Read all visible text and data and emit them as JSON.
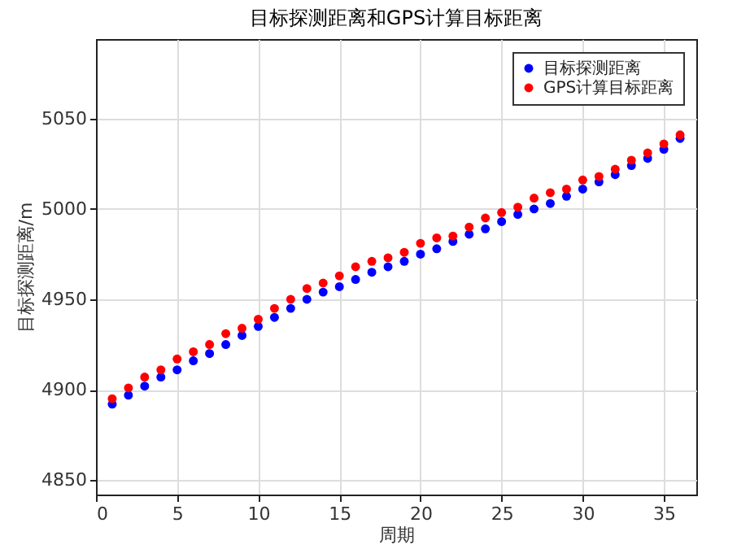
{
  "chart_data": {
    "type": "scatter",
    "title": "目标探测距离和GPS计算目标距离",
    "xlabel": "周期",
    "ylabel": "目标探测距离/m",
    "x": [
      1,
      2,
      3,
      4,
      5,
      6,
      7,
      8,
      9,
      10,
      11,
      12,
      13,
      14,
      15,
      16,
      17,
      18,
      19,
      20,
      21,
      22,
      23,
      24,
      25,
      26,
      27,
      28,
      29,
      30,
      31,
      32,
      33,
      34,
      35,
      36
    ],
    "series": [
      {
        "name": "目标探测距离",
        "color": "#0000ff",
        "values": [
          4892,
          4897,
          4902,
          4907,
          4911,
          4916,
          4920,
          4925,
          4930,
          4935,
          4940,
          4945,
          4950,
          4954,
          4957,
          4961,
          4965,
          4968,
          4971,
          4975,
          4978,
          4982,
          4986,
          4989,
          4993,
          4997,
          5000,
          5003,
          5007,
          5011,
          5015,
          5019,
          5024,
          5028,
          5033,
          5039
        ]
      },
      {
        "name": "GPS计算目标距离",
        "color": "#ff0000",
        "values": [
          4895,
          4901,
          4907,
          4911,
          4917,
          4921,
          4925,
          4931,
          4934,
          4939,
          4945,
          4950,
          4956,
          4959,
          4963,
          4968,
          4971,
          4973,
          4976,
          4981,
          4984,
          4985,
          4990,
          4995,
          4998,
          5001,
          5006,
          5009,
          5011,
          5016,
          5018,
          5022,
          5027,
          5031,
          5036,
          5041
        ]
      }
    ],
    "xlim": [
      0,
      37
    ],
    "ylim": [
      4842,
      5094
    ],
    "xticks": [
      0,
      5,
      10,
      15,
      20,
      25,
      30,
      35
    ],
    "yticks": [
      4850,
      4900,
      4950,
      5000,
      5050
    ],
    "grid": true,
    "legend": "top right",
    "marker": "circle"
  }
}
